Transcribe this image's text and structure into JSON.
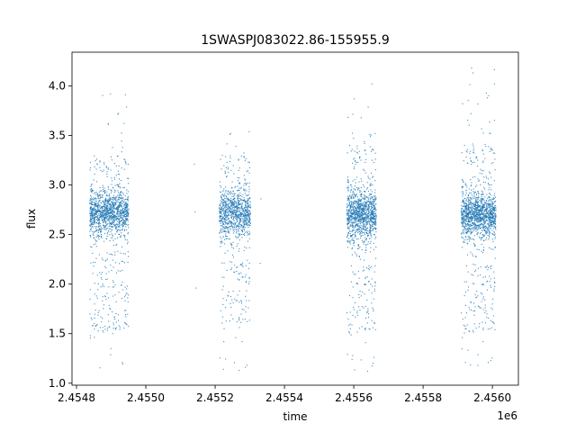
{
  "chart_data": {
    "type": "scatter",
    "title": "1SWASPJ083022.86-155955.9",
    "xlabel": "time",
    "ylabel": "flux",
    "x_offset_label": "1e6",
    "xlim": [
      2454787,
      2456075
    ],
    "ylim": [
      0.98,
      4.34
    ],
    "xticks": [
      2454800,
      2455000,
      2455200,
      2455400,
      2455600,
      2455800,
      2456000
    ],
    "xtick_labels": [
      "2.4548",
      "2.4550",
      "2.4552",
      "2.4554",
      "2.4556",
      "2.4558",
      "2.4560"
    ],
    "yticks": [
      1.0,
      1.5,
      2.0,
      2.5,
      3.0,
      3.5,
      4.0
    ],
    "ytick_labels": [
      "1.0",
      "1.5",
      "2.0",
      "2.5",
      "3.0",
      "3.5",
      "4.0"
    ],
    "marker_color": "#1f77b4",
    "grid": false,
    "series": [
      {
        "points": [
          [
            2454838,
            2.71
          ],
          [
            2454840,
            1.48
          ],
          [
            2454842,
            2.95
          ],
          [
            2454845,
            2.58
          ],
          [
            2454848,
            2.22
          ],
          [
            2454850,
            3.05
          ],
          [
            2454852,
            2.66
          ],
          [
            2454855,
            2.81
          ],
          [
            2454858,
            1.88
          ],
          [
            2454860,
            2.74
          ],
          [
            2454863,
            2.52
          ],
          [
            2454866,
            2.93
          ],
          [
            2454869,
            2.61
          ],
          [
            2454872,
            1.62
          ],
          [
            2454875,
            2.78
          ],
          [
            2454878,
            2.69
          ],
          [
            2454880,
            3.21
          ],
          [
            2454883,
            2.55
          ],
          [
            2454886,
            2.84
          ],
          [
            2454889,
            2.05
          ],
          [
            2454892,
            2.72
          ],
          [
            2454895,
            2.63
          ],
          [
            2454898,
            3.92
          ],
          [
            2454900,
            2.79
          ],
          [
            2454903,
            1.72
          ],
          [
            2454906,
            2.58
          ],
          [
            2454909,
            2.87
          ],
          [
            2454912,
            2.68
          ],
          [
            2454915,
            1.56
          ],
          [
            2454918,
            2.74
          ],
          [
            2454921,
            3.14
          ],
          [
            2454924,
            2.61
          ],
          [
            2454927,
            2.92
          ],
          [
            2454930,
            2.23
          ],
          [
            2454933,
            3.38
          ],
          [
            2454935,
            2.71
          ],
          [
            2454937,
            3.62
          ],
          [
            2454939,
            1.61
          ],
          [
            2454941,
            3.91
          ],
          [
            2454943,
            2.82
          ],
          [
            2454945,
            2.95
          ],
          [
            2454947,
            1.98
          ],
          [
            2454949,
            3.21
          ],
          [
            2454951,
            2.76
          ]
        ]
      },
      {
        "points": [
          [
            2455140,
            3.21
          ],
          [
            2455142,
            2.73
          ],
          [
            2455145,
            1.96
          ],
          [
            2455212,
            2.64
          ],
          [
            2455215,
            2.93
          ],
          [
            2455218,
            2.41
          ],
          [
            2455221,
            2.78
          ],
          [
            2455224,
            1.14
          ],
          [
            2455227,
            2.69
          ],
          [
            2455230,
            3.12
          ],
          [
            2455233,
            2.57
          ],
          [
            2455236,
            2.86
          ],
          [
            2455239,
            1.92
          ],
          [
            2455242,
            2.74
          ],
          [
            2455245,
            3.52
          ],
          [
            2455248,
            2.63
          ],
          [
            2455251,
            2.81
          ],
          [
            2455254,
            2.12
          ],
          [
            2455257,
            2.72
          ],
          [
            2455260,
            3.39
          ],
          [
            2455263,
            1.62
          ],
          [
            2455266,
            2.77
          ],
          [
            2455269,
            1.13
          ],
          [
            2455272,
            2.92
          ],
          [
            2455275,
            2.58
          ],
          [
            2455278,
            1.42
          ],
          [
            2455281,
            2.84
          ],
          [
            2455284,
            3.28
          ],
          [
            2455287,
            1.16
          ],
          [
            2455290,
            2.73
          ],
          [
            2455293,
            2.24
          ],
          [
            2455296,
            2.68
          ],
          [
            2455299,
            3.02
          ],
          [
            2455302,
            2.61
          ],
          [
            2455330,
            2.21
          ],
          [
            2455332,
            2.86
          ]
        ]
      },
      {
        "points": [
          [
            2455580,
            2.71
          ],
          [
            2455583,
            3.08
          ],
          [
            2455586,
            1.52
          ],
          [
            2455589,
            2.66
          ],
          [
            2455592,
            2.88
          ],
          [
            2455595,
            1.24
          ],
          [
            2455598,
            2.74
          ],
          [
            2455601,
            3.18
          ],
          [
            2455604,
            2.52
          ],
          [
            2455607,
            2.83
          ],
          [
            2455610,
            1.71
          ],
          [
            2455613,
            2.69
          ],
          [
            2455616,
            3.34
          ],
          [
            2455619,
            2.61
          ],
          [
            2455622,
            2.91
          ],
          [
            2455625,
            1.92
          ],
          [
            2455628,
            2.73
          ],
          [
            2455631,
            3.42
          ],
          [
            2455634,
            1.41
          ],
          [
            2455637,
            2.78
          ],
          [
            2455640,
            1.12
          ],
          [
            2455643,
            2.84
          ],
          [
            2455646,
            3.51
          ],
          [
            2455649,
            2.57
          ],
          [
            2455652,
            4.02
          ],
          [
            2455655,
            2.74
          ],
          [
            2455658,
            1.26
          ],
          [
            2455661,
            2.88
          ],
          [
            2455664,
            2.62
          ]
        ]
      },
      {
        "points": [
          [
            2455910,
            2.72
          ],
          [
            2455913,
            1.46
          ],
          [
            2455916,
            3.03
          ],
          [
            2455919,
            2.58
          ],
          [
            2455922,
            1.21
          ],
          [
            2455925,
            2.81
          ],
          [
            2455928,
            3.22
          ],
          [
            2455931,
            2.64
          ],
          [
            2455934,
            1.52
          ],
          [
            2455937,
            2.77
          ],
          [
            2455940,
            4.18
          ],
          [
            2455943,
            2.66
          ],
          [
            2455946,
            3.35
          ],
          [
            2455949,
            1.73
          ],
          [
            2455952,
            2.86
          ],
          [
            2455955,
            2.58
          ],
          [
            2455958,
            1.18
          ],
          [
            2455961,
            2.74
          ],
          [
            2455964,
            3.12
          ],
          [
            2455967,
            1.91
          ],
          [
            2455970,
            2.81
          ],
          [
            2455973,
            1.42
          ],
          [
            2455976,
            2.69
          ],
          [
            2455979,
            3.41
          ],
          [
            2455982,
            2.56
          ],
          [
            2455985,
            3.88
          ],
          [
            2455988,
            1.21
          ],
          [
            2455991,
            2.78
          ],
          [
            2455994,
            3.52
          ],
          [
            2455997,
            2.63
          ],
          [
            2456000,
            1.62
          ],
          [
            2456003,
            2.87
          ],
          [
            2456006,
            4.02
          ],
          [
            2456009,
            2.71
          ]
        ]
      }
    ],
    "clusters": [
      {
        "x_range": [
          2454838,
          2454950
        ],
        "y_core": [
          2.42,
          3.02
        ],
        "y_tail": [
          1.5,
          3.3
        ],
        "y_extreme": [
          1.15,
          3.95
        ],
        "density": 1400
      },
      {
        "x_range": [
          2455212,
          2455302
        ],
        "y_core": [
          2.4,
          3.05
        ],
        "y_tail": [
          1.6,
          3.3
        ],
        "y_extreme": [
          1.12,
          3.55
        ],
        "density": 1000
      },
      {
        "x_range": [
          2455580,
          2455665
        ],
        "y_core": [
          2.35,
          3.05
        ],
        "y_tail": [
          1.5,
          3.4
        ],
        "y_extreme": [
          1.13,
          4.03
        ],
        "density": 1200
      },
      {
        "x_range": [
          2455910,
          2456010
        ],
        "y_core": [
          2.4,
          3.0
        ],
        "y_tail": [
          1.5,
          3.4
        ],
        "y_extreme": [
          1.18,
          4.18
        ],
        "density": 1400
      }
    ]
  }
}
